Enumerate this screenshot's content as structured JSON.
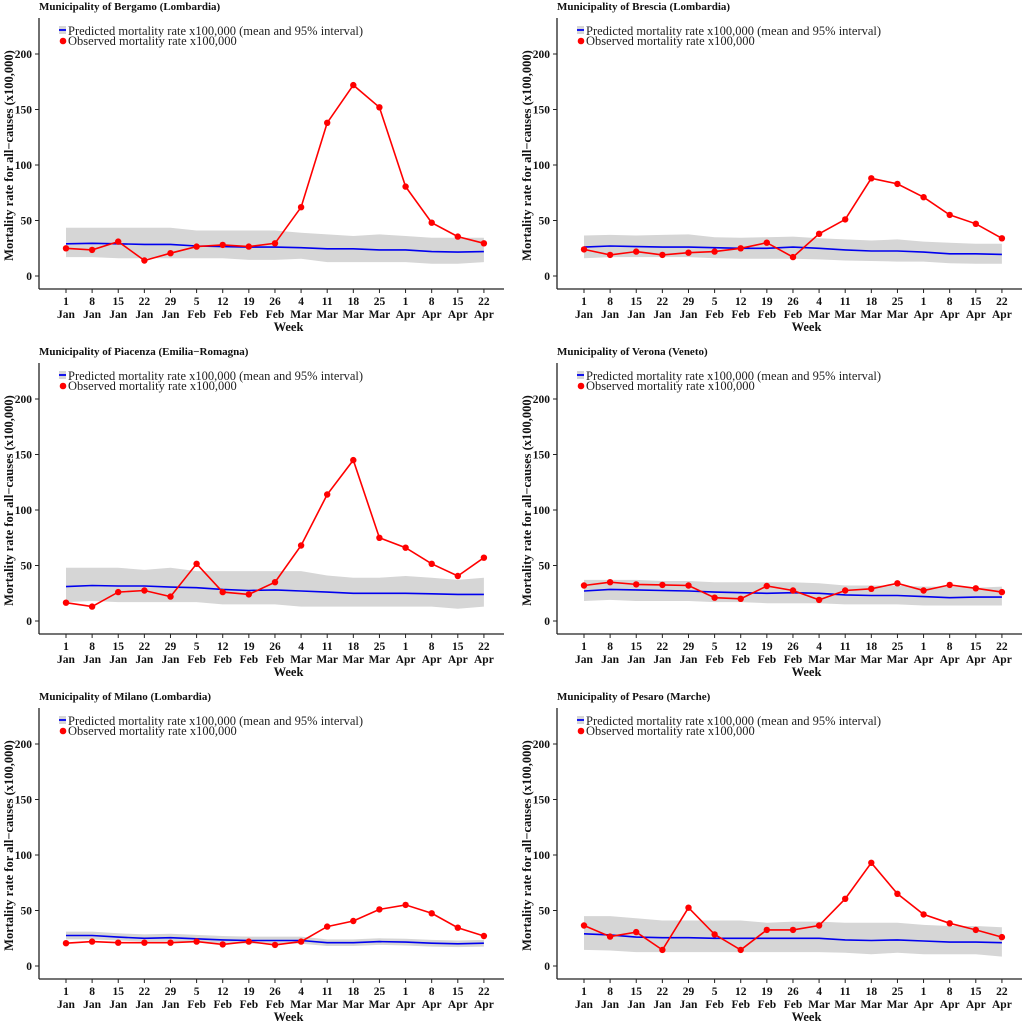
{
  "figure": {
    "legend": {
      "predicted_label": "Predicted mortality rate x100,000 (mean and 95% interval)",
      "observed_label": "Observed mortality rate x100,000"
    },
    "colors": {
      "observed": "#ff0000",
      "predicted": "#0000ee",
      "interval": "#d6d6d6",
      "axis": "#222222"
    }
  },
  "chart_data": [
    {
      "type": "line",
      "title": "Municipality of Bergamo (Lombardia)",
      "xlabel": "Week",
      "ylabel": "Mortality rate for all−causes (x100,000)",
      "ylim": [
        0,
        230
      ],
      "yticks": [
        0,
        50,
        100,
        150,
        200
      ],
      "grid": false,
      "legend_position": "top-left",
      "categories": [
        "1 Jan",
        "8 Jan",
        "15 Jan",
        "22 Jan",
        "29 Jan",
        "5 Feb",
        "12 Feb",
        "19 Feb",
        "26 Feb",
        "4 Mar",
        "11 Mar",
        "18 Mar",
        "25 Mar",
        "1 Apr",
        "8 Apr",
        "15 Apr",
        "22 Apr"
      ],
      "series": [
        {
          "name": "Observed mortality rate x100,000",
          "values": [
            25,
            23.5,
            31,
            14,
            20.5,
            26.5,
            28,
            26.5,
            29.5,
            62,
            138,
            172,
            152,
            80.5,
            48,
            35.5,
            29.5
          ]
        },
        {
          "name": "Predicted mortality rate x100,000 (mean)",
          "values": [
            29,
            29.5,
            29,
            28.5,
            28.5,
            27,
            26.5,
            26,
            26,
            25.5,
            24.5,
            24.5,
            23.5,
            23.5,
            22,
            21.5,
            22
          ]
        },
        {
          "name": "Predicted 95% interval upper",
          "values": [
            43.5,
            43.5,
            43.5,
            43.5,
            43.5,
            41,
            41,
            41,
            41,
            39,
            37.5,
            36,
            37.5,
            36,
            34.5,
            34.5,
            34.5
          ]
        },
        {
          "name": "Predicted 95% interval lower",
          "values": [
            17,
            17,
            16,
            16,
            16,
            16,
            16,
            14.5,
            14.5,
            15.5,
            12.5,
            12.5,
            12.5,
            12.5,
            11,
            11,
            12.5
          ]
        }
      ]
    },
    {
      "type": "line",
      "title": "Municipality of Brescia (Lombardia)",
      "xlabel": "Week",
      "ylabel": "Mortality rate for all−causes (x100,000)",
      "ylim": [
        0,
        230
      ],
      "yticks": [
        0,
        50,
        100,
        150,
        200
      ],
      "grid": false,
      "legend_position": "top-left",
      "categories": [
        "1 Jan",
        "8 Jan",
        "15 Jan",
        "22 Jan",
        "29 Jan",
        "5 Feb",
        "12 Feb",
        "19 Feb",
        "26 Feb",
        "4 Mar",
        "11 Mar",
        "18 Mar",
        "25 Mar",
        "1 Apr",
        "8 Apr",
        "15 Apr",
        "22 Apr"
      ],
      "series": [
        {
          "name": "Observed mortality rate x100,000",
          "values": [
            24,
            19,
            22,
            19,
            21,
            22,
            25,
            30,
            17,
            38,
            51,
            88,
            83,
            71,
            55,
            47,
            34
          ]
        },
        {
          "name": "Predicted mortality rate x100,000 (mean)",
          "values": [
            26,
            27,
            26.5,
            26,
            26,
            25.5,
            25,
            25,
            26,
            25,
            23.5,
            22.5,
            22.5,
            21.5,
            20,
            20,
            19.5
          ]
        },
        {
          "name": "Predicted 95% interval upper",
          "values": [
            36.5,
            37,
            36.5,
            37,
            37.5,
            35,
            34.5,
            35,
            35.5,
            34,
            33,
            32,
            33,
            31,
            30,
            29,
            29
          ]
        },
        {
          "name": "Predicted 95% interval lower",
          "values": [
            16,
            17,
            17,
            17,
            17,
            16,
            15.5,
            15.5,
            15.5,
            15,
            14,
            13.5,
            13,
            13,
            11.5,
            11,
            11
          ]
        }
      ]
    },
    {
      "type": "line",
      "title": "Municipality of Piacenza (Emilia−Romagna)",
      "xlabel": "Week",
      "ylabel": "Mortality rate for all−causes (x100,000)",
      "ylim": [
        0,
        230
      ],
      "yticks": [
        0,
        50,
        100,
        150,
        200
      ],
      "grid": false,
      "legend_position": "top-left",
      "categories": [
        "1 Jan",
        "8 Jan",
        "15 Jan",
        "22 Jan",
        "29 Jan",
        "5 Feb",
        "12 Feb",
        "19 Feb",
        "26 Feb",
        "4 Mar",
        "11 Mar",
        "18 Mar",
        "25 Mar",
        "1 Apr",
        "8 Apr",
        "15 Apr",
        "22 Apr"
      ],
      "series": [
        {
          "name": "Observed mortality rate x100,000",
          "values": [
            16.5,
            13,
            26,
            27.5,
            22,
            51.5,
            26,
            24,
            35,
            68,
            114,
            145,
            75,
            66,
            51.5,
            40.5,
            57
          ]
        },
        {
          "name": "Predicted mortality rate x100,000 (mean)",
          "values": [
            31,
            32,
            31.5,
            31.5,
            30.5,
            30,
            28.5,
            27.5,
            28,
            27,
            26,
            25,
            25,
            25,
            24.5,
            24,
            24
          ]
        },
        {
          "name": "Predicted 95% interval upper",
          "values": [
            48,
            48,
            48,
            46,
            48,
            45,
            45,
            45,
            45,
            45,
            41,
            39,
            39,
            40.5,
            39,
            37,
            39
          ]
        },
        {
          "name": "Predicted 95% interval lower",
          "values": [
            17,
            18,
            17,
            17,
            17,
            17,
            15,
            15,
            15,
            13,
            13,
            13,
            13,
            13,
            13,
            11,
            13
          ]
        }
      ]
    },
    {
      "type": "line",
      "title": "Municipality of Verona (Veneto)",
      "xlabel": "Week",
      "ylabel": "Mortality rate for all−causes (x100,000)",
      "ylim": [
        0,
        230
      ],
      "yticks": [
        0,
        50,
        100,
        150,
        200
      ],
      "grid": false,
      "legend_position": "top-left",
      "categories": [
        "1 Jan",
        "8 Jan",
        "15 Jan",
        "22 Jan",
        "29 Jan",
        "5 Feb",
        "12 Feb",
        "19 Feb",
        "26 Feb",
        "4 Mar",
        "11 Mar",
        "18 Mar",
        "25 Mar",
        "1 Apr",
        "8 Apr",
        "15 Apr",
        "22 Apr"
      ],
      "series": [
        {
          "name": "Observed mortality rate x100,000",
          "values": [
            32,
            35,
            33,
            32.5,
            32,
            21,
            20,
            31.5,
            27.5,
            19,
            27.5,
            29,
            34,
            27.5,
            32.5,
            29.5,
            26
          ]
        },
        {
          "name": "Predicted mortality rate x100,000 (mean)",
          "values": [
            27,
            28.5,
            28,
            27.5,
            27,
            26,
            25.5,
            25,
            25.5,
            25,
            23.5,
            23,
            23,
            22,
            21,
            21.5,
            21.5
          ]
        },
        {
          "name": "Predicted 95% interval upper",
          "values": [
            37,
            37,
            37,
            36,
            36,
            35,
            35,
            35,
            35,
            34,
            32,
            32,
            32,
            31,
            31,
            30,
            31
          ]
        },
        {
          "name": "Predicted 95% interval lower",
          "values": [
            18,
            19,
            18,
            18,
            18,
            17,
            17,
            16,
            16,
            16,
            15,
            15,
            15,
            14,
            14,
            14,
            14
          ]
        }
      ]
    },
    {
      "type": "line",
      "title": "Municipality of Milano (Lombardia)",
      "xlabel": "Week",
      "ylabel": "Mortality rate for all−causes (x100,000)",
      "ylim": [
        0,
        230
      ],
      "yticks": [
        0,
        50,
        100,
        150,
        200
      ],
      "grid": false,
      "legend_position": "top-left",
      "categories": [
        "1 Jan",
        "8 Jan",
        "15 Jan",
        "22 Jan",
        "29 Jan",
        "5 Feb",
        "12 Feb",
        "19 Feb",
        "26 Feb",
        "4 Mar",
        "11 Mar",
        "18 Mar",
        "25 Mar",
        "1 Apr",
        "8 Apr",
        "15 Apr",
        "22 Apr"
      ],
      "series": [
        {
          "name": "Observed mortality rate x100,000",
          "values": [
            20.5,
            22,
            21,
            21,
            21,
            22,
            19.5,
            22,
            19,
            22,
            35.5,
            40.5,
            51,
            55,
            47.5,
            34.5,
            27
          ]
        },
        {
          "name": "Predicted mortality rate x100,000 (mean)",
          "values": [
            27.5,
            27.5,
            26,
            25,
            25.5,
            24.5,
            23.5,
            23,
            23,
            23,
            21,
            21,
            22,
            21.5,
            20.5,
            20,
            20.5
          ]
        },
        {
          "name": "Predicted 95% interval upper",
          "values": [
            31,
            31,
            29.5,
            28.5,
            29,
            28,
            27,
            26.5,
            26.5,
            26.5,
            24,
            24,
            25,
            24.5,
            23.5,
            23,
            23.5
          ]
        },
        {
          "name": "Predicted 95% interval lower",
          "values": [
            24,
            24,
            23,
            22,
            22,
            21.5,
            20.5,
            20,
            20,
            20,
            18,
            18,
            19,
            18.5,
            17.5,
            17,
            17.5
          ]
        }
      ]
    },
    {
      "type": "line",
      "title": "Municipality of Pesaro (Marche)",
      "xlabel": "Week",
      "ylabel": "Mortality rate for all−causes (x100,000)",
      "ylim": [
        0,
        230
      ],
      "yticks": [
        0,
        50,
        100,
        150,
        200
      ],
      "grid": false,
      "legend_position": "top-left",
      "categories": [
        "1 Jan",
        "8 Jan",
        "15 Jan",
        "22 Jan",
        "29 Jan",
        "5 Feb",
        "12 Feb",
        "19 Feb",
        "26 Feb",
        "4 Mar",
        "11 Mar",
        "18 Mar",
        "25 Mar",
        "1 Apr",
        "8 Apr",
        "15 Apr",
        "22 Apr"
      ],
      "series": [
        {
          "name": "Observed mortality rate x100,000",
          "values": [
            36.5,
            26.5,
            30.5,
            14.5,
            52.5,
            28.5,
            14.5,
            32.5,
            32.5,
            36.5,
            60.5,
            93,
            65,
            46.5,
            38.5,
            32.5,
            26
          ]
        },
        {
          "name": "Predicted mortality rate x100,000 (mean)",
          "values": [
            29,
            28,
            26,
            25.5,
            25.5,
            25,
            25,
            25,
            25,
            25,
            23.5,
            23,
            23.5,
            22.5,
            21.5,
            21.5,
            21
          ]
        },
        {
          "name": "Predicted 95% interval upper",
          "values": [
            45,
            45,
            43,
            41,
            41,
            41,
            41,
            39,
            40,
            40,
            39,
            39,
            39,
            37,
            36,
            36,
            35
          ]
        },
        {
          "name": "Predicted 95% interval lower",
          "values": [
            14.5,
            14,
            12.5,
            12.5,
            12.5,
            12.5,
            12.5,
            12.5,
            12.5,
            12.5,
            12,
            10.5,
            12,
            10.5,
            10.5,
            10.5,
            8.5
          ]
        }
      ]
    }
  ]
}
